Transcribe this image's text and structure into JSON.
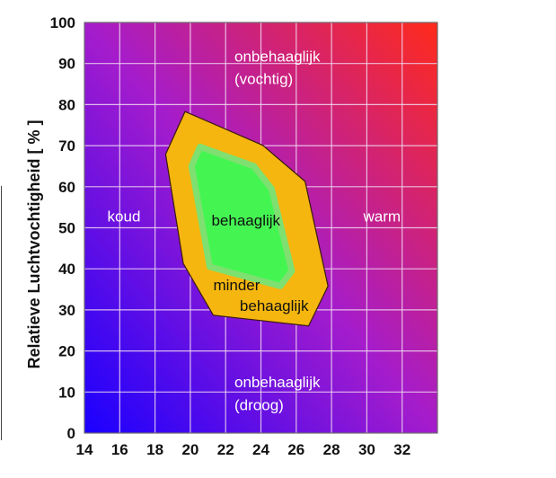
{
  "chart_data": {
    "type": "area",
    "title": "",
    "xlabel": "",
    "ylabel": "Relatieve Luchtvochtigheid [ % ]",
    "xlim": [
      14,
      34
    ],
    "ylim": [
      0,
      100
    ],
    "grid": true,
    "x_ticks": [
      "14",
      "16",
      "18",
      "20",
      "22",
      "24",
      "26",
      "28",
      "30",
      "32"
    ],
    "y_ticks": [
      "0",
      "10",
      "20",
      "30",
      "40",
      "50",
      "60",
      "70",
      "80",
      "90",
      "100"
    ],
    "background": {
      "from": "#1a00ff",
      "mid": "#a41ccc",
      "to": "#ff2a1a"
    },
    "regions": [
      {
        "name": "minder behaaglijk",
        "color": "#f5b60f",
        "points": [
          [
            19.7,
            78.3
          ],
          [
            24.1,
            70.1
          ],
          [
            26.5,
            61.3
          ],
          [
            27.8,
            35.8
          ],
          [
            26.7,
            26.1
          ],
          [
            21.3,
            28.7
          ],
          [
            19.6,
            41.3
          ],
          [
            18.6,
            67.9
          ]
        ]
      },
      {
        "name": "behaaglijk",
        "color": "#44f552",
        "points": [
          [
            20.55,
            69.7
          ],
          [
            23.6,
            65.0
          ],
          [
            24.6,
            59.5
          ],
          [
            25.75,
            39.5
          ],
          [
            25.1,
            35.8
          ],
          [
            21.1,
            40.5
          ],
          [
            20.07,
            65.0
          ]
        ]
      }
    ],
    "annotations": [
      {
        "id": "humid1",
        "text": "onbehaaglijk",
        "x": 22.5,
        "y": 90.5,
        "color": "#ffffff"
      },
      {
        "id": "humid2",
        "text": "(vochtig)",
        "x": 22.5,
        "y": 85,
        "color": "#ffffff"
      },
      {
        "id": "cold",
        "text": "koud",
        "x": 15.3,
        "y": 51.5,
        "color": "#ffffff"
      },
      {
        "id": "warm",
        "text": "warm",
        "x": 29.8,
        "y": 51.5,
        "color": "#ffffff"
      },
      {
        "id": "comfy",
        "text": "behaaglijk",
        "x": 21.2,
        "y": 50.5,
        "color": "#111111"
      },
      {
        "id": "less1",
        "text": "minder",
        "x": 21.3,
        "y": 34.8,
        "color": "#111111"
      },
      {
        "id": "less2",
        "text": "behaaglijk",
        "x": 22.8,
        "y": 29.8,
        "color": "#111111"
      },
      {
        "id": "dry1",
        "text": "onbehaaglijk",
        "x": 22.5,
        "y": 11.2,
        "color": "#ffffff"
      },
      {
        "id": "dry2",
        "text": "(droog)",
        "x": 22.5,
        "y": 5.6,
        "color": "#ffffff"
      }
    ]
  }
}
